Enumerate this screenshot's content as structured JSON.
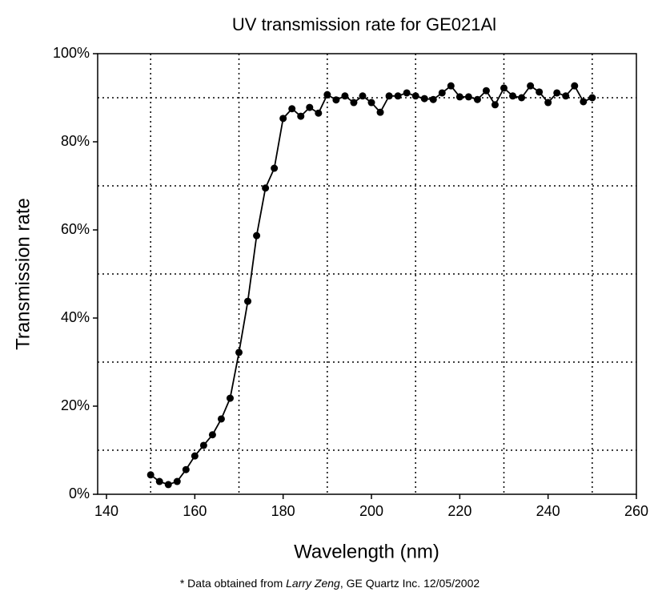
{
  "chart_data": {
    "type": "line",
    "title": "UV transmission rate for GE021Al",
    "x_label": "Wavelength (nm)",
    "y_label": "Transmission rate",
    "footnote": {
      "prefix": "* Data obtained from ",
      "author": "Larry Zeng",
      "rest": ", GE  Quartz Inc. 12/05/2002"
    },
    "x": [
      150,
      152,
      154,
      156,
      158,
      160,
      162,
      164,
      166,
      168,
      170,
      172,
      174,
      176,
      178,
      180,
      182,
      184,
      186,
      188,
      190,
      192,
      194,
      196,
      198,
      200,
      202,
      204,
      206,
      208,
      210,
      212,
      214,
      216,
      218,
      220,
      222,
      224,
      226,
      228,
      230,
      232,
      234,
      236,
      238,
      240,
      242,
      244,
      246,
      248,
      250
    ],
    "series": [
      {
        "name": "GE021Al",
        "color": "#000000",
        "values": [
          4.4,
          2.9,
          2.2,
          2.9,
          5.6,
          8.7,
          11.1,
          13.5,
          17.1,
          21.8,
          32.2,
          43.8,
          58.7,
          69.5,
          74,
          85.3,
          87.5,
          85.8,
          87.8,
          86.5,
          90.7,
          89.5,
          90.4,
          88.9,
          90.4,
          88.9,
          86.7,
          90.4,
          90.4,
          91.1,
          90.4,
          89.8,
          89.6,
          91.1,
          92.7,
          90.2,
          90.2,
          89.6,
          91.6,
          88.4,
          92.2,
          90.4,
          90,
          92.7,
          91.3,
          88.9,
          91.1,
          90.4,
          92.7,
          89.1,
          90
        ]
      }
    ],
    "xlim": [
      138,
      260
    ],
    "ylim": [
      0,
      100
    ],
    "xticks": [
      140,
      160,
      180,
      200,
      220,
      240,
      260
    ],
    "yticks": [
      {
        "value": 0,
        "label": "0%"
      },
      {
        "value": 20,
        "label": "20%"
      },
      {
        "value": 40,
        "label": "40%"
      },
      {
        "value": 60,
        "label": "60%"
      },
      {
        "value": 80,
        "label": "80%"
      },
      {
        "value": 100,
        "label": "100%"
      }
    ],
    "x_grid": [
      150,
      170,
      190,
      210,
      230,
      250
    ],
    "y_grid": [
      10,
      30,
      50,
      70,
      90
    ]
  }
}
